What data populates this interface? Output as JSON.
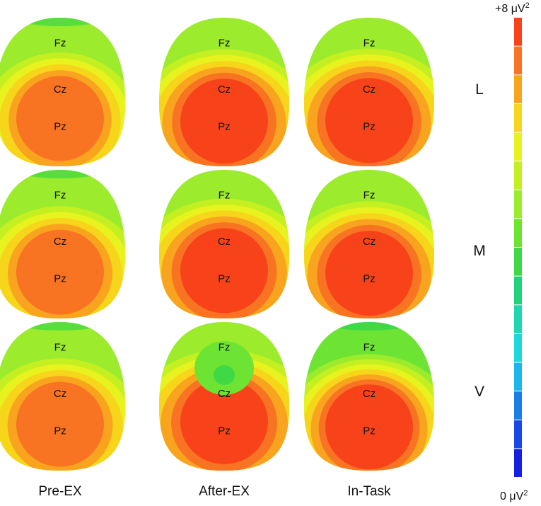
{
  "columns": [
    "Pre-EX",
    "After-EX",
    "In-Task"
  ],
  "rows": [
    "L",
    "M",
    "V"
  ],
  "electrodes": {
    "front": "Fz",
    "center": "Cz",
    "back": "Pz"
  },
  "colorbar": {
    "max_label": "+8 μV",
    "min_label": "0 μV",
    "unit_exponent": "2",
    "colors_top_to_bottom": [
      "#f8431a",
      "#f87422",
      "#f9a41f",
      "#f7d51b",
      "#e8f21f",
      "#c4f022",
      "#9ceb2c",
      "#6de433",
      "#3fd946",
      "#22d27a",
      "#20d6b1",
      "#1ed7dd",
      "#1db5ee",
      "#1b7ee8",
      "#1848e6",
      "#1620e0"
    ]
  },
  "maps": [
    {
      "row": "L",
      "col": "Pre-EX",
      "levels": [
        6,
        6,
        5,
        4,
        3,
        2,
        1
      ],
      "pz_level": 0.4,
      "depth": 0.22,
      "top_band": "#57de3a"
    },
    {
      "row": "L",
      "col": "After-EX",
      "levels": [
        6,
        5,
        4,
        3,
        2,
        1,
        0
      ],
      "pz_level": 0.45,
      "depth": 0.12,
      "top_band": ""
    },
    {
      "row": "L",
      "col": "In-Task",
      "levels": [
        6,
        5,
        4,
        3,
        2,
        1,
        0
      ],
      "pz_level": 0.44,
      "depth": 0.12,
      "top_band": ""
    },
    {
      "row": "M",
      "col": "Pre-EX",
      "levels": [
        6,
        6,
        5,
        4,
        3,
        2,
        1
      ],
      "pz_level": 0.43,
      "depth": 0.1,
      "top_band": "#57de3a"
    },
    {
      "row": "M",
      "col": "After-EX",
      "levels": [
        6,
        5,
        4,
        3,
        2,
        1,
        0
      ],
      "pz_level": 0.4,
      "depth": 0.06,
      "top_band": ""
    },
    {
      "row": "M",
      "col": "In-Task",
      "levels": [
        6,
        5,
        4,
        3,
        2,
        1,
        0
      ],
      "pz_level": 0.45,
      "depth": 0.12,
      "top_band": ""
    },
    {
      "row": "V",
      "col": "Pre-EX",
      "levels": [
        6,
        6,
        5,
        4,
        3,
        2,
        1
      ],
      "pz_level": 0.43,
      "depth": 0.06,
      "top_band": "#57de3a"
    },
    {
      "row": "V",
      "col": "After-EX",
      "levels": [
        6,
        5,
        4,
        3,
        2,
        1,
        0
      ],
      "pz_level": 0.38,
      "depth": 0.0,
      "top_band": "",
      "hole": true
    },
    {
      "row": "V",
      "col": "In-Task",
      "levels": [
        7,
        6,
        5,
        4,
        3,
        2,
        1,
        0
      ],
      "pz_level": 0.48,
      "depth": 0.18,
      "top_band": "#3fd946"
    }
  ]
}
